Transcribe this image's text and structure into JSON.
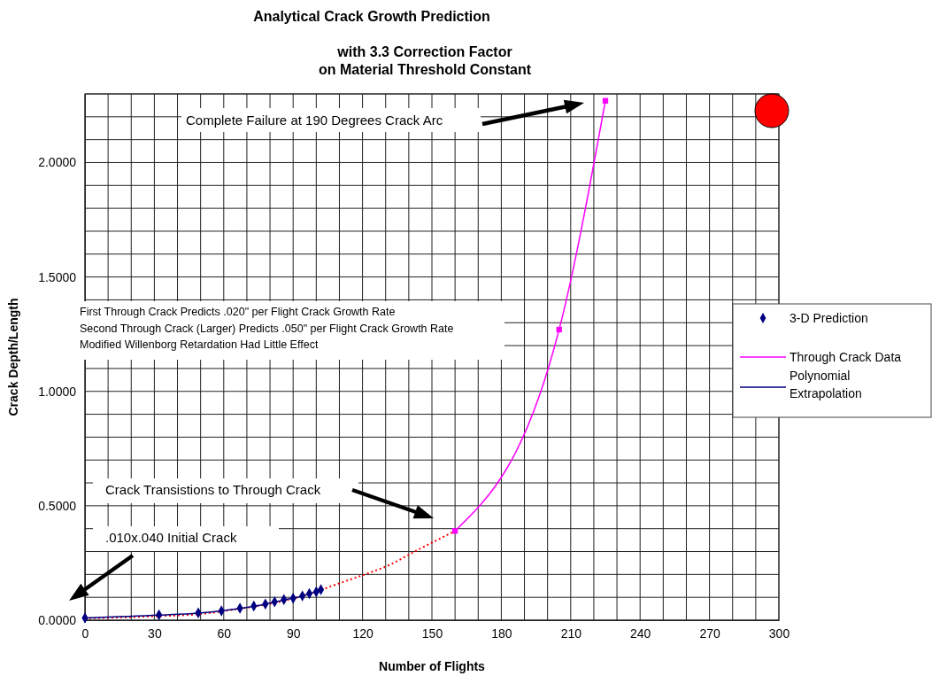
{
  "chart_data": {
    "type": "scatter",
    "title": "Analytical Crack Growth Prediction",
    "subtitle": "with 3.3 Correction Factor\non Material Threshold Constant",
    "xlabel": "Number of Flights",
    "ylabel": "Crack Depth/Length",
    "xlim": [
      0,
      300
    ],
    "ylim": [
      0,
      2.3
    ],
    "xticks": [
      0,
      {
        "value": 10,
        "label": null
      },
      {
        "value": 20,
        "label": null
      },
      30,
      {
        "value": 40,
        "label": null
      },
      {
        "value": 50,
        "label": null
      },
      60,
      {
        "value": 70,
        "label": null
      },
      {
        "value": 80,
        "label": null
      },
      90,
      {
        "value": 100,
        "label": null
      },
      {
        "value": 110,
        "label": null
      },
      120,
      {
        "value": 130,
        "label": null
      },
      {
        "value": 140,
        "label": null
      },
      150,
      {
        "value": 160,
        "label": null
      },
      {
        "value": 170,
        "label": null
      },
      180,
      {
        "value": 190,
        "label": null
      },
      {
        "value": 200,
        "label": null
      },
      210,
      {
        "value": 220,
        "label": null
      },
      {
        "value": 230,
        "label": null
      },
      240,
      {
        "value": 250,
        "label": null
      },
      {
        "value": 260,
        "label": null
      },
      270,
      {
        "value": 280,
        "label": null
      },
      {
        "value": 290,
        "label": null
      },
      300
    ],
    "yticks": [
      {
        "value": 0,
        "label": "0.0000"
      },
      {
        "value": 0.1,
        "label": null
      },
      {
        "value": 0.2,
        "label": null
      },
      {
        "value": 0.3,
        "label": null
      },
      {
        "value": 0.4,
        "label": null
      },
      {
        "value": 0.5,
        "label": "0.5000"
      },
      {
        "value": 0.6,
        "label": null
      },
      {
        "value": 0.7,
        "label": null
      },
      {
        "value": 0.8,
        "label": null
      },
      {
        "value": 0.9,
        "label": null
      },
      {
        "value": 1,
        "label": "1.0000"
      },
      {
        "value": 1.1,
        "label": null
      },
      {
        "value": 1.2,
        "label": null
      },
      {
        "value": 1.3,
        "label": null
      },
      {
        "value": 1.4,
        "label": null
      },
      {
        "value": 1.5,
        "label": "1.5000"
      },
      {
        "value": 1.6,
        "label": null
      },
      {
        "value": 1.7,
        "label": null
      },
      {
        "value": 1.8,
        "label": null
      },
      {
        "value": 1.9,
        "label": null
      },
      {
        "value": 2,
        "label": "2.0000"
      },
      {
        "value": 2.1,
        "label": null
      },
      {
        "value": 2.2,
        "label": null
      },
      {
        "value": 2.3,
        "label": null
      }
    ],
    "grid": true,
    "legend": "right",
    "series": [
      {
        "name": "3-D Prediction",
        "marker": "diamond",
        "color": "#000080",
        "x": [
          0,
          32,
          49,
          59,
          67,
          73,
          78,
          82,
          86,
          90,
          94,
          97,
          100,
          102
        ],
        "values": [
          0.01,
          0.023,
          0.032,
          0.041,
          0.052,
          0.062,
          0.071,
          0.08,
          0.09,
          0.096,
          0.106,
          0.116,
          0.124,
          0.134
        ]
      },
      {
        "name": "Through Crack Data",
        "type": "line",
        "marker": "square",
        "color": "#ff00ff",
        "x": [
          160,
          205,
          225
        ],
        "values": [
          0.39,
          1.27,
          2.27
        ]
      },
      {
        "name": "Polynomial Extrapolation",
        "type": "line",
        "marker": "none",
        "color": "#000080",
        "x": [
          0,
          32,
          49,
          59,
          67,
          78,
          86,
          94,
          102
        ],
        "values": [
          0.01,
          0.022,
          0.031,
          0.041,
          0.051,
          0.07,
          0.088,
          0.106,
          0.133
        ]
      },
      {
        "type": "line",
        "marker": "none",
        "line_style": "dotted",
        "color": "#ff0000",
        "x": [
          0,
          32,
          49,
          65,
          83,
          91,
          102,
          111,
          121,
          132,
          142,
          152,
          160
        ],
        "values": [
          0.008,
          0.018,
          0.026,
          0.047,
          0.078,
          0.097,
          0.132,
          0.165,
          0.2,
          0.243,
          0.297,
          0.349,
          0.39
        ]
      }
    ],
    "annotations": [
      "Complete Failure at 190 Degrees Crack Arc",
      "First Through Crack Predicts .020\" per Flight Crack Growth Rate",
      "Second Through Crack (Larger) Predicts .050\" per Flight Crack Growth Rate",
      "Modified Willenborg Retardation Had Little Effect",
      "Crack Transistions to Through Crack",
      ".010x.040 Initial Crack"
    ]
  }
}
